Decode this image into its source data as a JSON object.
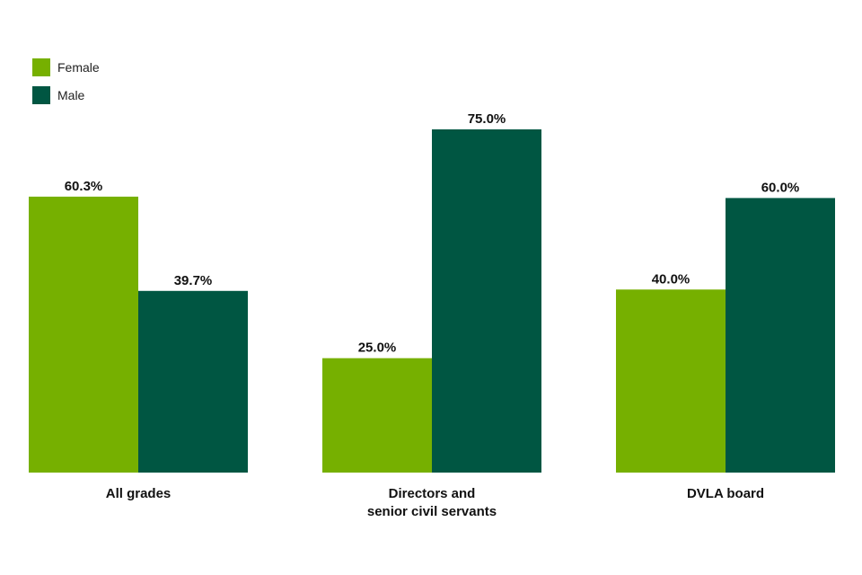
{
  "chart_data": {
    "type": "bar",
    "categories": [
      [
        "All grades"
      ],
      [
        "Directors and",
        "senior civil servants"
      ],
      [
        "DVLA board"
      ]
    ],
    "series": [
      {
        "name": "Female",
        "values": [
          60.3,
          25.0,
          40.0
        ],
        "labels": [
          "60.3%",
          "25.0%",
          "40.0%"
        ],
        "color": "#76b000"
      },
      {
        "name": "Male",
        "values": [
          39.7,
          75.0,
          60.0
        ],
        "labels": [
          "39.7%",
          "75.0%",
          "60.0%"
        ],
        "color": "#005642"
      }
    ],
    "ylim": [
      0,
      75
    ],
    "grid": false,
    "legend_position": "top-left"
  }
}
